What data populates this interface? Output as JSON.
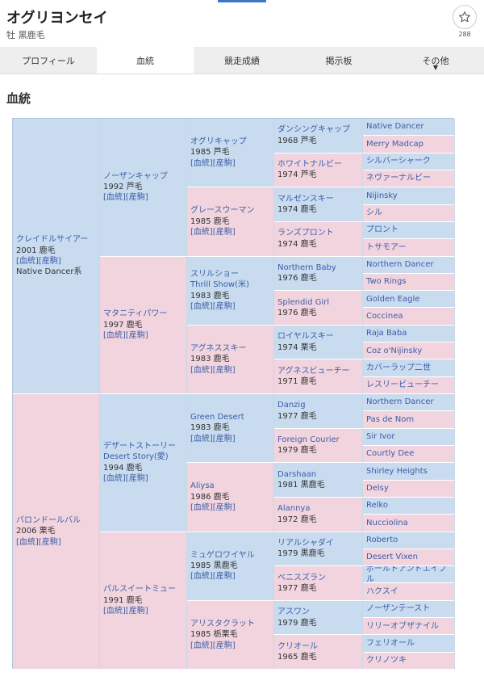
{
  "horse": {
    "name": "オグリヨンセイ",
    "sub": "牡 黒鹿毛",
    "fav_count": "288"
  },
  "tabs": [
    {
      "label": "プロフィール"
    },
    {
      "label": "血統"
    },
    {
      "label": "競走成績"
    },
    {
      "label": "掲示板"
    },
    {
      "label": "その他"
    }
  ],
  "section_title": "血統",
  "pedigree": {
    "g1": [
      {
        "name": "クレイドルサイアー",
        "meta": "2001 鹿毛",
        "links": "[血統][産駒]",
        "line": "Native Dancer系"
      },
      {
        "name": "バロンドールバル",
        "meta": "2006 栗毛",
        "links": "[血統][産駒]"
      }
    ],
    "g2": [
      {
        "name": "ノーザンキャップ",
        "meta": "1992 芦毛",
        "links": "[血統][産駒]"
      },
      {
        "name": "マタニティパワー",
        "meta": "1997 鹿毛",
        "links": "[血統][産駒]"
      },
      {
        "name": "デザートストーリー",
        "name2": "Desert Story(愛)",
        "meta": "1994 鹿毛",
        "links": "[血統][産駒]"
      },
      {
        "name": "パルスイートミュー",
        "meta": "1991 鹿毛",
        "links": "[血統][産駒]"
      }
    ],
    "g3": [
      {
        "name": "オグリキャップ",
        "meta": "1985 芦毛",
        "links": "[血統][産駒]"
      },
      {
        "name": "グレースウーマン",
        "meta": "1985 鹿毛",
        "links": "[血統][産駒]"
      },
      {
        "name": "スリルショー",
        "name2": "Thrill Show(米)",
        "meta": "1983 鹿毛",
        "links": "[血統][産駒]"
      },
      {
        "name": "アグネススキー",
        "meta": "1983 鹿毛",
        "links": "[血統][産駒]"
      },
      {
        "name": "Green Desert",
        "meta": "1983 鹿毛",
        "links": "[血統][産駒]"
      },
      {
        "name": "Aliysa",
        "meta": "1986 鹿毛",
        "links": "[血統][産駒]"
      },
      {
        "name": "ミュゲロワイヤル",
        "meta": "1985 黒鹿毛",
        "links": "[血統][産駒]"
      },
      {
        "name": "アリスタクラット",
        "meta": "1985 栃栗毛",
        "links": "[血統][産駒]"
      }
    ],
    "g4": [
      {
        "name": "ダンシングキャップ",
        "meta": "1968 芦毛"
      },
      {
        "name": "ホワイトナルビー",
        "meta": "1974 芦毛"
      },
      {
        "name": "マルゼンスキー",
        "meta": "1974 鹿毛"
      },
      {
        "name": "ランズプロント",
        "meta": "1974 鹿毛"
      },
      {
        "name": "Northern Baby",
        "meta": "1976 鹿毛"
      },
      {
        "name": "Splendid Girl",
        "meta": "1976 鹿毛"
      },
      {
        "name": "ロイヤルスキー",
        "meta": "1974 栗毛"
      },
      {
        "name": "アグネスビューチー",
        "meta": "1971 鹿毛"
      },
      {
        "name": "Danzig",
        "meta": "1977 鹿毛"
      },
      {
        "name": "Foreign Courier",
        "meta": "1979 鹿毛"
      },
      {
        "name": "Darshaan",
        "meta": "1981 黒鹿毛"
      },
      {
        "name": "Alannya",
        "meta": "1972 鹿毛"
      },
      {
        "name": "リアルシャダイ",
        "meta": "1979 黒鹿毛"
      },
      {
        "name": "ベニスズラン",
        "meta": "1977 鹿毛"
      },
      {
        "name": "アスワン",
        "meta": "1979 鹿毛"
      },
      {
        "name": "クリオール",
        "meta": "1965 鹿毛"
      }
    ],
    "g5": [
      "Native Dancer",
      "Merry Madcap",
      "シルバーシャーク",
      "ネヴァーナルビー",
      "Nijinsky",
      "シル",
      "プロント",
      "トサモアー",
      "Northern Dancer",
      "Two Rings",
      "Golden Eagle",
      "Coccinea",
      "Raja Baba",
      "Coz o'Nijinsky",
      "カバーラップ二世",
      "レスリービューチー",
      "Northern Dancer",
      "Pas de Nom",
      "Sir Ivor",
      "Courtly Dee",
      "Shirley Heights",
      "Delsy",
      "Relko",
      "Nucciolina",
      "Roberto",
      "Desert Vixen",
      "ボールドアンドエイブル",
      "ハクスイ",
      "ノーザンテースト",
      "リリーオブザナイル",
      "フェリオール",
      "クリノツキ"
    ]
  }
}
